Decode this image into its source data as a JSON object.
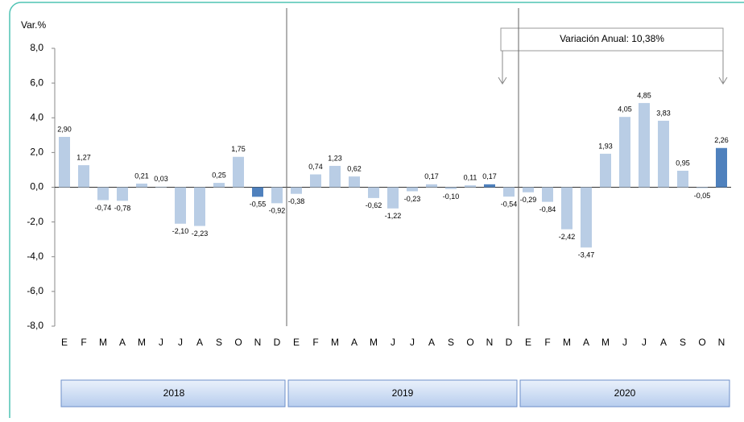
{
  "chart_data": {
    "type": "bar",
    "y_label": "Var.%",
    "annotation": "Variación Anual: 10,38%",
    "categories": [
      "E",
      "F",
      "M",
      "A",
      "M",
      "J",
      "J",
      "A",
      "S",
      "O",
      "N",
      "D",
      "E",
      "F",
      "M",
      "A",
      "M",
      "J",
      "J",
      "A",
      "S",
      "O",
      "N",
      "D",
      "E",
      "F",
      "M",
      "A",
      "M",
      "J",
      "J",
      "A",
      "S",
      "O",
      "N"
    ],
    "groups": [
      "2018",
      "2019",
      "2020"
    ],
    "values": [
      2.9,
      1.27,
      -0.74,
      -0.78,
      0.21,
      0.03,
      -2.1,
      -2.23,
      0.25,
      1.75,
      -0.55,
      -0.92,
      -0.38,
      0.74,
      1.23,
      0.62,
      -0.62,
      -1.22,
      -0.23,
      0.17,
      -0.1,
      0.11,
      0.17,
      -0.54,
      -0.29,
      -0.84,
      -2.42,
      -3.47,
      1.93,
      4.05,
      4.85,
      3.83,
      0.95,
      -0.05,
      2.26
    ],
    "value_labels": [
      "2,90",
      "1,27",
      "-0,74",
      "-0,78",
      "0,21",
      "0,03",
      "-2,10",
      "-2,23",
      "0,25",
      "1,75",
      "-0,55",
      "-0,92",
      "-0,38",
      "0,74",
      "1,23",
      "0,62",
      "-0,62",
      "-1,22",
      "-0,23",
      "0,17",
      "-0,10",
      "0,11",
      "0,17",
      "-0,54",
      "-0,29",
      "-0,84",
      "-2,42",
      "-3,47",
      "1,93",
      "4,05",
      "4,85",
      "3,83",
      "0,95",
      "-0,05",
      "2,26"
    ],
    "colors": [
      "#b9cde5",
      "#b9cde5",
      "#b9cde5",
      "#b9cde5",
      "#b9cde5",
      "#b9cde5",
      "#b9cde5",
      "#b9cde5",
      "#b9cde5",
      "#b9cde5",
      "#4f81bd",
      "#b9cde5",
      "#b9cde5",
      "#b9cde5",
      "#b9cde5",
      "#b9cde5",
      "#b9cde5",
      "#b9cde5",
      "#b9cde5",
      "#b9cde5",
      "#b9cde5",
      "#b9cde5",
      "#4f81bd",
      "#b9cde5",
      "#b9cde5",
      "#b9cde5",
      "#b9cde5",
      "#b9cde5",
      "#b9cde5",
      "#b9cde5",
      "#b9cde5",
      "#b9cde5",
      "#b9cde5",
      "#b9cde5",
      "#4f81bd"
    ],
    "ylim": [
      -8,
      8
    ],
    "yticks": [
      {
        "value": -8,
        "label": "-8,0"
      },
      {
        "value": -6,
        "label": "-6,0"
      },
      {
        "value": -4,
        "label": "-4,0"
      },
      {
        "value": -2,
        "label": "-2,0"
      },
      {
        "value": 0,
        "label": "0,0"
      },
      {
        "value": 2,
        "label": "2,0"
      },
      {
        "value": 4,
        "label": "4,0"
      },
      {
        "value": 6,
        "label": "6,0"
      },
      {
        "value": 8,
        "label": "8,0"
      }
    ]
  }
}
